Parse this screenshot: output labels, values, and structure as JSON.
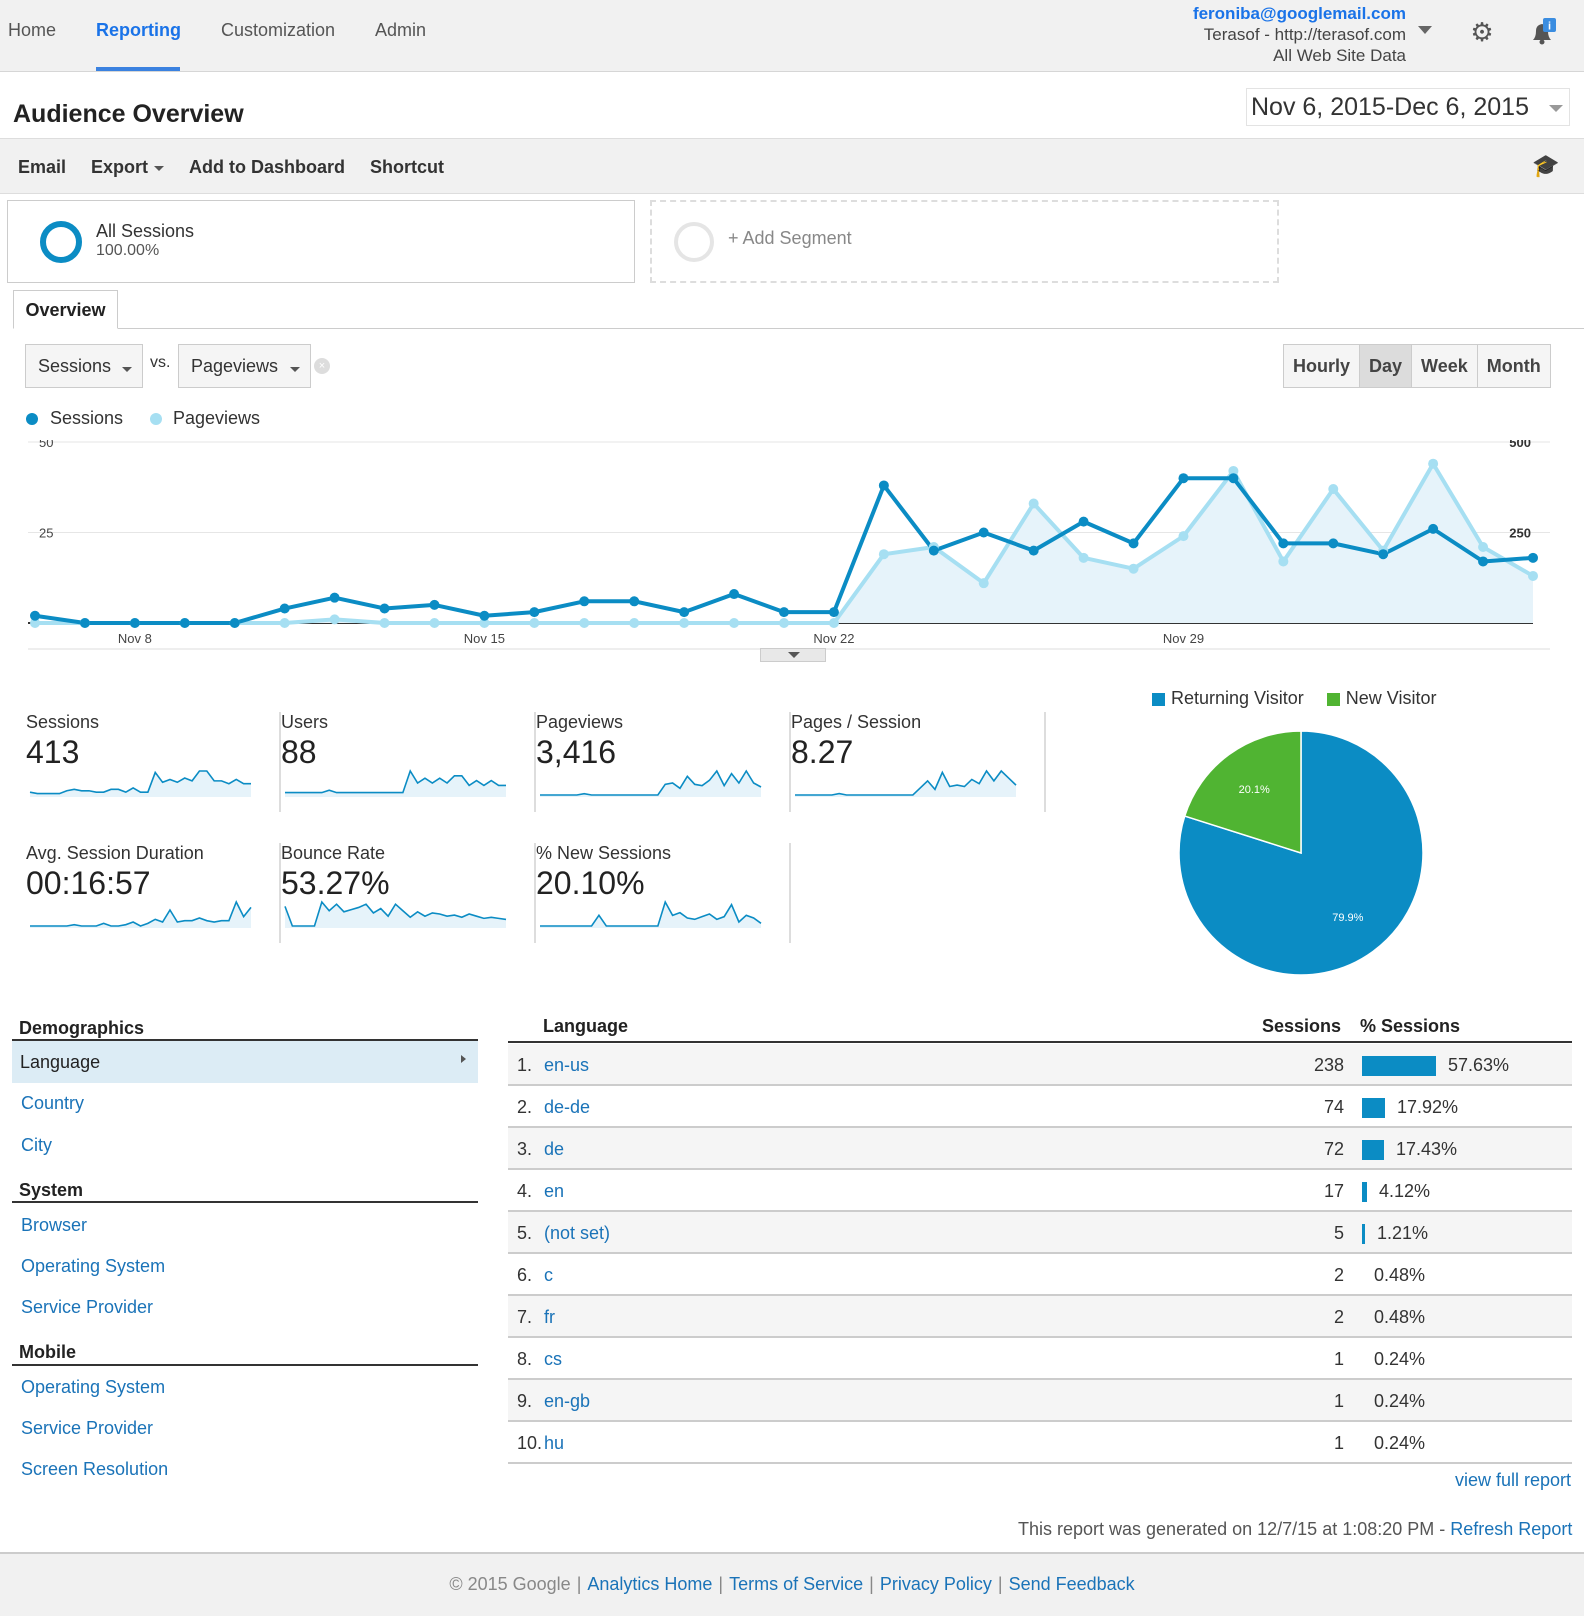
{
  "nav": {
    "items": [
      "Home",
      "Reporting",
      "Customization",
      "Admin"
    ],
    "active": "Reporting"
  },
  "account": {
    "email": "feroniba@googlemail.com",
    "property": "Terasof - http://terasof.com",
    "view": "All Web Site Data"
  },
  "header": {
    "title": "Audience Overview",
    "date_start": "Nov 6, 2015",
    "date_sep": "-",
    "date_end": "Dec 6, 2015"
  },
  "toolbar": {
    "email": "Email",
    "export": "Export",
    "add_dashboard": "Add to Dashboard",
    "shortcut": "Shortcut"
  },
  "segments": {
    "active_name": "All Sessions",
    "active_pct": "100.00%",
    "add_label": "+ Add Segment"
  },
  "tabs": {
    "overview": "Overview"
  },
  "selectors": {
    "metric1": "Sessions",
    "vs": "vs.",
    "metric2": "Pageviews"
  },
  "granularity": {
    "hourly": "Hourly",
    "day": "Day",
    "week": "Week",
    "month": "Month",
    "active": "Day"
  },
  "colors": {
    "sessions": "#0b8cc4",
    "pageviews": "#a6dff2",
    "new_visitor": "#50b432",
    "returning_visitor": "#0b8cc4"
  },
  "chart_data": {
    "type": "line",
    "x": [
      "Nov 6",
      "Nov 7",
      "Nov 8",
      "Nov 9",
      "Nov 10",
      "Nov 11",
      "Nov 12",
      "Nov 13",
      "Nov 14",
      "Nov 15",
      "Nov 16",
      "Nov 17",
      "Nov 18",
      "Nov 19",
      "Nov 20",
      "Nov 21",
      "Nov 22",
      "Nov 23",
      "Nov 24",
      "Nov 25",
      "Nov 26",
      "Nov 27",
      "Nov 28",
      "Nov 29",
      "Nov 30",
      "Dec 1",
      "Dec 2",
      "Dec 3",
      "Dec 4",
      "Dec 5",
      "Dec 6"
    ],
    "x_tick_labels": [
      "Nov 8",
      "Nov 15",
      "Nov 22",
      "Nov 29"
    ],
    "series": [
      {
        "name": "Sessions",
        "axis": "left",
        "values": [
          2,
          0,
          0,
          0,
          0,
          4,
          7,
          4,
          5,
          2,
          3,
          6,
          6,
          3,
          8,
          3,
          3,
          38,
          20,
          25,
          20,
          28,
          22,
          40,
          40,
          22,
          22,
          19,
          26,
          17,
          18
        ]
      },
      {
        "name": "Pageviews",
        "axis": "right",
        "values": [
          0,
          0,
          0,
          0,
          0,
          0,
          10,
          0,
          0,
          0,
          0,
          0,
          0,
          0,
          0,
          0,
          0,
          190,
          210,
          110,
          330,
          180,
          150,
          240,
          420,
          170,
          370,
          200,
          440,
          210,
          130
        ]
      }
    ],
    "y_left_ticks": [
      "25",
      "50"
    ],
    "y_left_lim": [
      0,
      50
    ],
    "y_right_ticks": [
      "250",
      "500"
    ],
    "y_right_lim": [
      0,
      500
    ],
    "legend": "top-left"
  },
  "metrics": [
    {
      "label": "Sessions",
      "value": "413",
      "spark": [
        2,
        1,
        1,
        1,
        1,
        3,
        4,
        3,
        3,
        2,
        2,
        4,
        4,
        2,
        5,
        2,
        2,
        16,
        9,
        11,
        9,
        12,
        10,
        17,
        17,
        10,
        10,
        8,
        11,
        8,
        8
      ]
    },
    {
      "label": "Users",
      "value": "88",
      "spark": [
        1,
        1,
        1,
        1,
        1,
        1,
        2,
        1,
        1,
        1,
        1,
        1,
        1,
        1,
        1,
        1,
        1,
        10,
        5,
        7,
        5,
        7,
        5,
        8,
        8,
        4,
        6,
        4,
        6,
        4,
        4
      ]
    },
    {
      "label": "Pageviews",
      "value": "3,416",
      "spark": [
        0,
        0,
        0,
        0,
        0,
        0,
        1,
        0,
        0,
        0,
        0,
        0,
        0,
        0,
        0,
        0,
        0,
        8,
        9,
        5,
        14,
        8,
        7,
        11,
        18,
        7,
        16,
        9,
        18,
        9,
        6
      ]
    },
    {
      "label": "Pages / Session",
      "value": "8.27",
      "spark": [
        0,
        0,
        0,
        0,
        0,
        0,
        1,
        0,
        0,
        0,
        0,
        0,
        0,
        0,
        0,
        0,
        0,
        5,
        10,
        4,
        16,
        6,
        7,
        6,
        11,
        8,
        17,
        10,
        17,
        12,
        7
      ]
    },
    {
      "label": "Avg. Session Duration",
      "value": "00:16:57",
      "spark": [
        0,
        0,
        0,
        0,
        0,
        0,
        1,
        0,
        0,
        0,
        2,
        0,
        0,
        1,
        3,
        0,
        2,
        5,
        3,
        12,
        3,
        4,
        4,
        6,
        4,
        3,
        4,
        4,
        18,
        7,
        14
      ]
    },
    {
      "label": "Bounce Rate",
      "value": "53.27%",
      "spark": [
        18,
        0,
        0,
        0,
        0,
        22,
        14,
        20,
        13,
        15,
        17,
        20,
        12,
        16,
        9,
        20,
        14,
        8,
        13,
        9,
        12,
        11,
        9,
        10,
        8,
        11,
        9,
        7,
        8,
        7,
        6
      ]
    },
    {
      "label": "% New Sessions",
      "value": "20.10%",
      "spark": [
        0,
        0,
        0,
        0,
        0,
        0,
        0,
        0,
        8,
        0,
        0,
        0,
        0,
        0,
        0,
        0,
        0,
        18,
        8,
        10,
        6,
        5,
        7,
        9,
        5,
        7,
        16,
        3,
        8,
        6,
        2
      ]
    }
  ],
  "pie": {
    "legend": [
      "Returning Visitor",
      "New Visitor"
    ],
    "slices": [
      {
        "name": "Returning Visitor",
        "value": 79.9,
        "label": "79.9%"
      },
      {
        "name": "New Visitor",
        "value": 20.1,
        "label": "20.1%"
      }
    ]
  },
  "demographics": {
    "head_demographics": "Demographics",
    "demographics_items": [
      "Language",
      "Country",
      "City"
    ],
    "selected": "Language",
    "head_system": "System",
    "system_items": [
      "Browser",
      "Operating System",
      "Service Provider"
    ],
    "head_mobile": "Mobile",
    "mobile_items": [
      "Operating System",
      "Service Provider",
      "Screen Resolution"
    ]
  },
  "language_table": {
    "headers": {
      "language": "Language",
      "sessions": "Sessions",
      "pct_sessions": "% Sessions"
    },
    "rows": [
      {
        "idx": "1.",
        "lang": "en-us",
        "sessions": "238",
        "pct": "57.63%",
        "pct_value": 57.63
      },
      {
        "idx": "2.",
        "lang": "de-de",
        "sessions": "74",
        "pct": "17.92%",
        "pct_value": 17.92
      },
      {
        "idx": "3.",
        "lang": "de",
        "sessions": "72",
        "pct": "17.43%",
        "pct_value": 17.43
      },
      {
        "idx": "4.",
        "lang": "en",
        "sessions": "17",
        "pct": "4.12%",
        "pct_value": 4.12
      },
      {
        "idx": "5.",
        "lang": "(not set)",
        "sessions": "5",
        "pct": "1.21%",
        "pct_value": 1.21
      },
      {
        "idx": "6.",
        "lang": "c",
        "sessions": "2",
        "pct": "0.48%",
        "pct_value": 0.48
      },
      {
        "idx": "7.",
        "lang": "fr",
        "sessions": "2",
        "pct": "0.48%",
        "pct_value": 0.48
      },
      {
        "idx": "8.",
        "lang": "cs",
        "sessions": "1",
        "pct": "0.24%",
        "pct_value": 0.24
      },
      {
        "idx": "9.",
        "lang": "en-gb",
        "sessions": "1",
        "pct": "0.24%",
        "pct_value": 0.24
      },
      {
        "idx": "10.",
        "lang": "hu",
        "sessions": "1",
        "pct": "0.24%",
        "pct_value": 0.24
      }
    ],
    "view_full": "view full report"
  },
  "report": {
    "generated": "This report was generated on 12/7/15 at 1:08:20 PM - ",
    "refresh": "Refresh Report"
  },
  "footer": {
    "copyright": "© 2015 Google",
    "links": [
      "Analytics Home",
      "Terms of Service",
      "Privacy Policy",
      "Send Feedback"
    ]
  }
}
